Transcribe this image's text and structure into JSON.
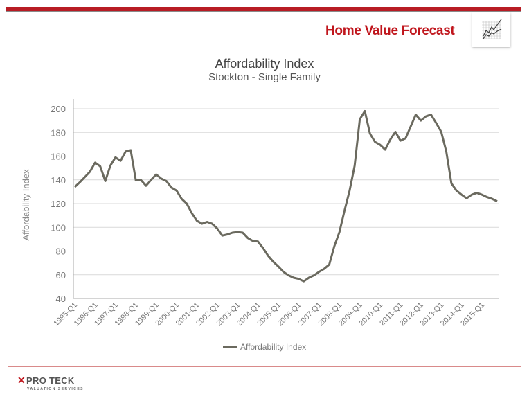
{
  "header": {
    "brand_title": "Home Value Forecast",
    "icon": "line-chart-icon"
  },
  "footer": {
    "logo_mark": "✕",
    "logo_text": "PRO TECK",
    "logo_subtext": "VALUATION SERVICES"
  },
  "colors": {
    "accent": "#b81c24",
    "series": "#6b6a5f",
    "grid": "#d9d9d9"
  },
  "chart_data": {
    "type": "line",
    "title": "Affordability Index",
    "subtitle": "Stockton - Single Family",
    "xlabel": "",
    "ylabel": "Affordability Index",
    "ylim": [
      40,
      200
    ],
    "yticks": [
      40,
      60,
      80,
      100,
      120,
      140,
      160,
      180,
      200
    ],
    "grid": true,
    "legend": "bottom",
    "xtick_labels": [
      "1995-Q1",
      "1996-Q1",
      "1997-Q1",
      "1998-Q1",
      "1999-Q1",
      "2000-Q1",
      "2001-Q1",
      "2002-Q1",
      "2003-Q1",
      "2004-Q1",
      "2005-Q1",
      "2006-Q1",
      "2007-Q1",
      "2008-Q1",
      "2009-Q1",
      "2010-Q1",
      "2011-Q1",
      "2012-Q1",
      "2013-Q1",
      "2014-Q1",
      "2015-Q1"
    ],
    "x_start": "1995-Q1",
    "x_end": "2015-Q4",
    "series": [
      {
        "name": "Affordability Index",
        "values": [
          134,
          138,
          142.5,
          147,
          154.5,
          151.5,
          139,
          152,
          159,
          156,
          164,
          165,
          139.5,
          140,
          135,
          140,
          144.5,
          141,
          139,
          133.5,
          131,
          124,
          120,
          112,
          105.5,
          103,
          104.5,
          103,
          99,
          93,
          94,
          95.5,
          96,
          95.5,
          91,
          88.5,
          88,
          82.5,
          76,
          71,
          67,
          62.5,
          59.5,
          57.5,
          56.5,
          54.5,
          57.5,
          59.5,
          62.5,
          65,
          68.6,
          84,
          96,
          114,
          131,
          152,
          191,
          198,
          179,
          172,
          169.5,
          165.5,
          174,
          180.5,
          173,
          175,
          185,
          195,
          190,
          193.5,
          195,
          188,
          180.5,
          164,
          137,
          131,
          127.5,
          124.5,
          127.5,
          129,
          127.5,
          125.5,
          124,
          122
        ]
      }
    ]
  }
}
